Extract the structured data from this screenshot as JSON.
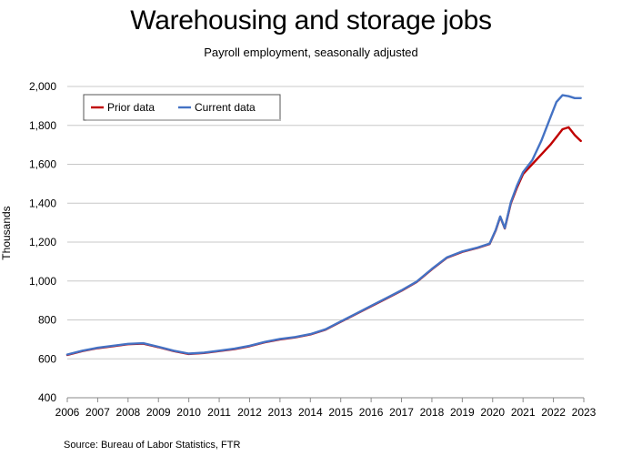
{
  "chart_data": {
    "type": "line",
    "title": "Warehousing and storage jobs",
    "subtitle": "Payroll employment, seasonally adjusted",
    "xlabel": "",
    "ylabel": "Thousands",
    "source": "Source: Bureau of Labor Statistics, FTR",
    "xlim": [
      2006,
      2023
    ],
    "ylim": [
      400,
      2000
    ],
    "x_ticks": [
      "2006",
      "2007",
      "2008",
      "2009",
      "2010",
      "2011",
      "2012",
      "2013",
      "2014",
      "2015",
      "2016",
      "2017",
      "2018",
      "2019",
      "2020",
      "2021",
      "2022",
      "2023"
    ],
    "y_ticks": [
      "400",
      "600",
      "800",
      "1,000",
      "1,200",
      "1,400",
      "1,600",
      "1,800",
      "2,000"
    ],
    "grid": "horizontal",
    "legend_position": "top-left",
    "series": [
      {
        "name": "Prior data",
        "color": "#c00000",
        "x": [
          2006.0,
          2006.5,
          2007.0,
          2007.5,
          2008.0,
          2008.5,
          2009.0,
          2009.5,
          2010.0,
          2010.5,
          2011.0,
          2011.5,
          2012.0,
          2012.5,
          2013.0,
          2013.5,
          2014.0,
          2014.5,
          2015.0,
          2015.5,
          2016.0,
          2016.5,
          2017.0,
          2017.5,
          2018.0,
          2018.5,
          2019.0,
          2019.5,
          2019.9,
          2020.1,
          2020.25,
          2020.4,
          2020.6,
          2020.8,
          2021.0,
          2021.3,
          2021.6,
          2021.9,
          2022.1,
          2022.3,
          2022.5,
          2022.7,
          2022.9
        ],
        "values": [
          620,
          640,
          655,
          665,
          675,
          678,
          660,
          640,
          625,
          630,
          640,
          650,
          665,
          685,
          700,
          710,
          725,
          750,
          790,
          830,
          870,
          910,
          950,
          995,
          1060,
          1120,
          1150,
          1170,
          1190,
          1260,
          1330,
          1270,
          1400,
          1480,
          1550,
          1600,
          1650,
          1700,
          1740,
          1780,
          1790,
          1750,
          1720
        ]
      },
      {
        "name": "Current data",
        "color": "#4472c4",
        "x": [
          2006.0,
          2006.5,
          2007.0,
          2007.5,
          2008.0,
          2008.5,
          2009.0,
          2009.5,
          2010.0,
          2010.5,
          2011.0,
          2011.5,
          2012.0,
          2012.5,
          2013.0,
          2013.5,
          2014.0,
          2014.5,
          2015.0,
          2015.5,
          2016.0,
          2016.5,
          2017.0,
          2017.5,
          2018.0,
          2018.5,
          2019.0,
          2019.5,
          2019.9,
          2020.1,
          2020.25,
          2020.4,
          2020.6,
          2020.8,
          2021.0,
          2021.3,
          2021.6,
          2021.9,
          2022.1,
          2022.3,
          2022.5,
          2022.7,
          2022.9
        ],
        "values": [
          622,
          642,
          657,
          667,
          677,
          680,
          662,
          642,
          627,
          632,
          642,
          652,
          667,
          687,
          702,
          712,
          727,
          752,
          792,
          832,
          872,
          912,
          952,
          997,
          1062,
          1122,
          1152,
          1172,
          1192,
          1262,
          1332,
          1272,
          1405,
          1490,
          1560,
          1620,
          1720,
          1840,
          1920,
          1955,
          1950,
          1940,
          1940
        ]
      }
    ]
  }
}
